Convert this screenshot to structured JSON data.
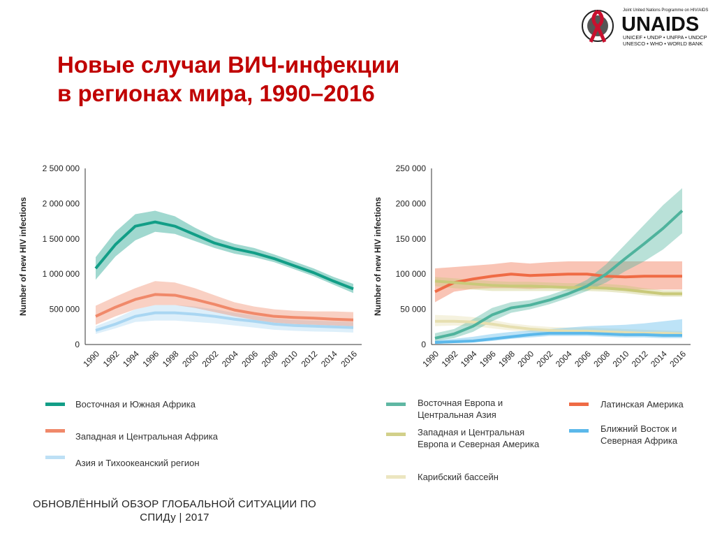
{
  "title_lines": [
    "Новые случаи ВИЧ-инфекции",
    "в регионах мира, 1990–2016"
  ],
  "logo": {
    "tagline": "Joint United Nations Programme on HIV/AIDS",
    "name": "UNAIDS",
    "cosponsors_1": "UNICEF • UNDP • UNFPA • UNDCP",
    "cosponsors_2": "UNESCO • WHO • WORLD BANK",
    "ribbon_color": "#c8102e"
  },
  "footer": [
    "ОБНОВЛЁННЫЙ ОБЗОР ГЛОБАЛЬНОЙ СИТУАЦИИ ПО",
    "СПИДу | 2017"
  ],
  "chart_data": [
    {
      "type": "line",
      "ylabel": "Number of new HIV infections",
      "ylim": [
        0,
        2500000
      ],
      "yticks": [
        "0",
        "500 000",
        "1 000 000",
        "1 500 000",
        "2 000 000",
        "2 500 000"
      ],
      "yticks_values": [
        0,
        500000,
        1000000,
        1500000,
        2000000,
        2500000
      ],
      "x": [
        "1990",
        "1992",
        "1994",
        "1996",
        "1998",
        "2000",
        "2002",
        "2004",
        "2006",
        "2008",
        "2010",
        "2012",
        "2014",
        "2016"
      ],
      "series": [
        {
          "name": "Азия и Тихоокеанский регион",
          "color": "#a9d6f2",
          "values": [
            200000,
            290000,
            400000,
            450000,
            450000,
            430000,
            400000,
            360000,
            330000,
            290000,
            270000,
            260000,
            250000,
            240000
          ],
          "lower": [
            150000,
            230000,
            320000,
            340000,
            340000,
            320000,
            300000,
            270000,
            240000,
            210000,
            195000,
            185000,
            180000,
            170000
          ],
          "upper": [
            260000,
            370000,
            500000,
            560000,
            560000,
            540000,
            500000,
            450000,
            410000,
            370000,
            350000,
            340000,
            330000,
            320000
          ]
        },
        {
          "name": "Западная и Центральная Африка",
          "color": "#f0896a",
          "values": [
            400000,
            530000,
            640000,
            710000,
            700000,
            640000,
            570000,
            490000,
            440000,
            400000,
            385000,
            375000,
            360000,
            350000
          ],
          "lower": [
            280000,
            400000,
            500000,
            560000,
            560000,
            520000,
            460000,
            400000,
            350000,
            310000,
            290000,
            280000,
            270000,
            260000
          ],
          "upper": [
            550000,
            680000,
            800000,
            900000,
            880000,
            800000,
            700000,
            600000,
            540000,
            500000,
            480000,
            470000,
            470000,
            460000
          ]
        },
        {
          "name": "Восточная и Южная Африка",
          "color": "#129e87",
          "values": [
            1080000,
            1420000,
            1680000,
            1740000,
            1680000,
            1560000,
            1440000,
            1360000,
            1300000,
            1220000,
            1120000,
            1020000,
            900000,
            790000
          ],
          "lower": [
            920000,
            1250000,
            1480000,
            1600000,
            1570000,
            1470000,
            1370000,
            1290000,
            1240000,
            1170000,
            1070000,
            970000,
            850000,
            730000
          ],
          "upper": [
            1240000,
            1600000,
            1850000,
            1900000,
            1820000,
            1660000,
            1520000,
            1430000,
            1370000,
            1280000,
            1180000,
            1080000,
            960000,
            860000
          ]
        }
      ]
    },
    {
      "type": "line",
      "ylabel": "Number of new HIV infections",
      "ylim": [
        0,
        250000
      ],
      "yticks": [
        "0",
        "50 000",
        "100 000",
        "150 000",
        "200 000",
        "250 000"
      ],
      "yticks_values": [
        0,
        50000,
        100000,
        150000,
        200000,
        250000
      ],
      "x": [
        "1990",
        "1992",
        "1994",
        "1996",
        "1998",
        "2000",
        "2002",
        "2004",
        "2006",
        "2008",
        "2010",
        "2012",
        "2014",
        "2016"
      ],
      "series": [
        {
          "name": "Латинская Америка",
          "color": "#ef6b45",
          "values": [
            75000,
            88000,
            93000,
            97000,
            100000,
            98000,
            99000,
            100000,
            100000,
            97000,
            96000,
            97000,
            97000,
            97000
          ],
          "lower": [
            60000,
            75000,
            79000,
            80000,
            80000,
            79000,
            80000,
            80000,
            80000,
            79000,
            78000,
            78000,
            78000,
            78000
          ],
          "upper": [
            108000,
            110000,
            112000,
            114000,
            117000,
            115000,
            117000,
            118000,
            118000,
            118000,
            118000,
            118000,
            118000,
            118000
          ]
        },
        {
          "name": "Западная и Центральная Европа и Северная Америка",
          "color": "#c9c97a",
          "values": [
            90000,
            88000,
            86000,
            84000,
            83000,
            83000,
            82000,
            81000,
            81000,
            80000,
            78000,
            75000,
            72000,
            72000
          ],
          "lower": [
            83000,
            80000,
            78000,
            76000,
            76000,
            76000,
            76000,
            76000,
            76000,
            75000,
            73000,
            70000,
            68000,
            68000
          ],
          "upper": [
            96000,
            94000,
            92000,
            90000,
            89000,
            89000,
            88000,
            87000,
            87000,
            86000,
            84000,
            80000,
            77000,
            77000
          ]
        },
        {
          "name": "Карибский бассейн",
          "color": "#e6dfb0",
          "values": [
            33000,
            33000,
            32000,
            29000,
            25000,
            22000,
            20000,
            19000,
            19000,
            18000,
            17000,
            16000,
            16000,
            15000
          ],
          "lower": [
            26000,
            27000,
            26000,
            23000,
            20000,
            18000,
            16000,
            15000,
            15000,
            14000,
            13000,
            12000,
            12000,
            11000
          ],
          "upper": [
            42000,
            41000,
            39000,
            35000,
            30000,
            27000,
            25000,
            24000,
            24000,
            23000,
            22000,
            21000,
            20000,
            19000
          ]
        },
        {
          "name": "Ближний Восток и Северная Африка",
          "color": "#5bb8ea",
          "values": [
            3000,
            4000,
            5000,
            8000,
            11000,
            14000,
            16000,
            16000,
            16000,
            15000,
            14000,
            14000,
            13000,
            13000
          ],
          "lower": [
            1000,
            2000,
            3000,
            5000,
            8000,
            10000,
            12000,
            12000,
            12000,
            11000,
            10000,
            10000,
            9000,
            9000
          ],
          "upper": [
            6000,
            8000,
            11000,
            15000,
            18000,
            20000,
            22000,
            24000,
            26000,
            27000,
            28000,
            30000,
            33000,
            36000
          ]
        },
        {
          "name": "Восточная Европа и Центральная Азия",
          "color": "#4fb39d",
          "values": [
            9000,
            15000,
            26000,
            42000,
            52000,
            56000,
            63000,
            72000,
            83000,
            100000,
            122000,
            143000,
            165000,
            190000
          ],
          "lower": [
            5000,
            9000,
            18000,
            33000,
            45000,
            50000,
            57000,
            66000,
            76000,
            88000,
            104000,
            118000,
            135000,
            158000
          ],
          "upper": [
            16000,
            22000,
            36000,
            52000,
            60000,
            63000,
            70000,
            79000,
            92000,
            114000,
            142000,
            170000,
            198000,
            222000
          ]
        }
      ]
    }
  ],
  "legend_left": [
    {
      "label": "Восточная и Южная Африка",
      "color": "#129e87"
    },
    {
      "label": "Западная и Центральная Африка",
      "color": "#f0896a"
    },
    {
      "label": "Азия и Тихоокеанский регион",
      "color": "#bde0f5"
    }
  ],
  "legend_right": [
    {
      "label": "Восточная Европа и Центральная Азия",
      "color": "#5fb7a3"
    },
    {
      "label": "Западная и Центральная Европа и Северная Америка",
      "color": "#d2d08a"
    },
    {
      "label": "Карибский бассейн",
      "color": "#ece6c0"
    },
    {
      "label": "Латинская Америка",
      "color": "#ef6b45"
    },
    {
      "label": "Ближний Восток и Северная Африка",
      "color": "#5bb8ea"
    }
  ]
}
